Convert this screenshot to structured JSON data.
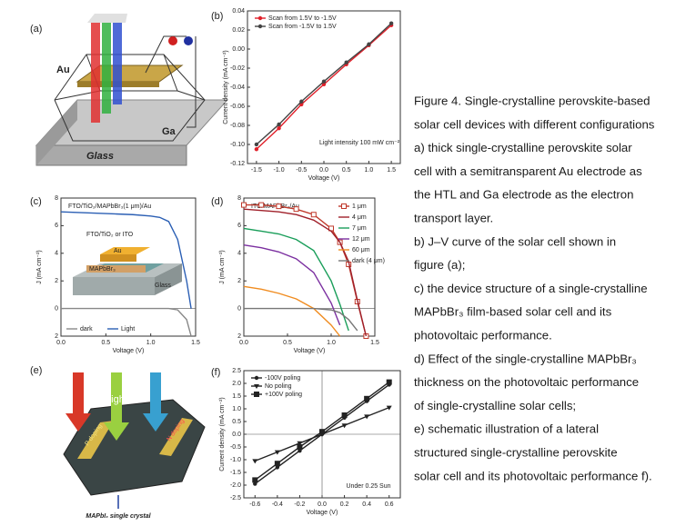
{
  "figure": {
    "panel_labels": [
      "(a)",
      "(b)",
      "(c)",
      "(d)",
      "(e)",
      "(f)"
    ],
    "panel_a": [
      "Au",
      "Ga",
      "Glass"
    ],
    "panel_e": [
      "Light",
      "P doping",
      "N doping",
      "MAPbI₃ single crystal"
    ],
    "caption": [
      "Figure 4. Single-crystalline perovskite-based",
      "solar cell devices with different configurations",
      "a)   thick single-crystalline perovskite solar",
      "cell with a semitransparent Au electrode as",
      "the HTL and Ga electrode as the electron",
      "transport layer.",
      "b) J–V curve of the solar cell shown in",
      "figure (a);",
      "c) the device structure of a  single-crystalline",
      "MAPbBr₃ film-based solar cell and its",
      "photovoltaic performance.",
      "d) Effect of the single-crystalline MAPbBr₃",
      "thickness on the photovoltaic performance",
      "of single-crystalline solar cells;",
      "e) schematic illustration of a lateral",
      "structured single-crystalline perovskite",
      "solar cell and its photovoltaic performance f)."
    ]
  },
  "chart_data": [
    {
      "type": "line",
      "x_label": "Voltage (V)",
      "y_label": "Current density (mA cm⁻²)",
      "annotations": [
        "Light intensity 100 mW cm⁻²"
      ],
      "x": [
        -1.5,
        -1.0,
        -0.5,
        0,
        0.5,
        1.0,
        1.5
      ],
      "series": [
        {
          "name": "Scan from 1.5V to -1.5V",
          "color": "#e0202a",
          "marker": "circle",
          "values": [
            -0.105,
            -0.083,
            -0.058,
            -0.037,
            -0.016,
            0.004,
            0.025
          ]
        },
        {
          "name": "Scan from -1.5V to 1.5V",
          "color": "#444444",
          "marker": "circle",
          "values": [
            -0.1,
            -0.079,
            -0.055,
            -0.034,
            -0.014,
            0.005,
            0.027
          ]
        }
      ],
      "xlim": [
        -1.7,
        1.7
      ],
      "ylim": [
        -0.12,
        0.04
      ],
      "xticks": [
        -1.5,
        {
          "value": -1,
          "label": "-1.0"
        },
        -0.5,
        {
          "value": 0,
          "label": "0.0"
        },
        0.5,
        {
          "value": 1,
          "label": "1.0"
        },
        1.5
      ],
      "yticks": [
        -0.12,
        {
          "value": -0.1,
          "label": "-0.10"
        },
        -0.08,
        -0.06,
        -0.04,
        -0.02,
        {
          "value": 0,
          "label": "0.00"
        },
        0.02,
        0.04
      ],
      "legend": "upper left",
      "zero_lines": false
    },
    {
      "type": "line",
      "title": "FTO/TiO₂/MAPbBr₃(1 μm)/Au",
      "x_label": "Voltage (V)",
      "y_label": "J (mA cm⁻²)",
      "inset": [
        "FTO/TiO₂ or ITO",
        "Au",
        "MAPbBr₃",
        "Glass"
      ],
      "x": [
        0,
        0.2,
        0.4,
        0.6,
        0.8,
        1.0,
        1.1,
        1.2,
        1.3,
        1.4,
        1.45
      ],
      "series": [
        {
          "name": "dark",
          "color": "#888888",
          "values": [
            0,
            0,
            0,
            0,
            0,
            0,
            0,
            0,
            -0.1,
            -0.8,
            -2
          ]
        },
        {
          "name": "Light",
          "color": "#2b5fb4",
          "values": [
            7,
            6.95,
            6.9,
            6.85,
            6.8,
            6.7,
            6.6,
            6.3,
            5.0,
            2.0,
            0
          ]
        }
      ],
      "xlim": [
        0,
        1.5
      ],
      "ylim": [
        -2,
        8
      ],
      "xticks": [
        {
          "value": 0,
          "label": "0.0"
        },
        0.5,
        {
          "value": 1,
          "label": "1.0"
        },
        1.5
      ],
      "yticks": [
        8,
        6,
        4,
        2,
        0,
        {
          "value": -2,
          "label": "2"
        }
      ],
      "legend": "lower left",
      "zero_lines": true
    },
    {
      "type": "line",
      "title": "ITO/MAPbBr₃/Au",
      "x_label": "Voltage (V)",
      "y_label": "J (mA cm⁻²)",
      "x": [
        0,
        0.2,
        0.4,
        0.6,
        0.8,
        1.0,
        1.1,
        1.2,
        1.3,
        1.4
      ],
      "series": [
        {
          "name": "1 μm",
          "color": "#c0392b",
          "marker": "square",
          "values": [
            7.5,
            7.5,
            7.4,
            7.2,
            6.8,
            5.8,
            4.8,
            3.2,
            0.5,
            -2
          ]
        },
        {
          "name": "4 μm",
          "color": "#a0202a",
          "values": [
            7.2,
            7.1,
            7.0,
            6.8,
            6.4,
            5.6,
            4.8,
            3.4,
            0.6,
            -2
          ]
        },
        {
          "name": "7 μm",
          "color": "#1a9e5a",
          "values": [
            5.8,
            5.6,
            5.4,
            5.0,
            4.2,
            2.0,
            0.3,
            -1.6,
            null,
            null
          ]
        },
        {
          "name": "12 μm",
          "color": "#7b2fa0",
          "values": [
            4.6,
            4.4,
            4.1,
            3.6,
            2.6,
            0.4,
            -1.2,
            null,
            null,
            null
          ]
        },
        {
          "name": "60 μm",
          "color": "#f08c20",
          "values": [
            1.6,
            1.4,
            1.1,
            0.7,
            0,
            -1.2,
            -2,
            null,
            null,
            null
          ]
        },
        {
          "name": "dark (4 μm)",
          "color": "#777777",
          "values": [
            0,
            0,
            0,
            0,
            0,
            -0.1,
            -0.3,
            -0.8,
            -1.6,
            null
          ]
        }
      ],
      "xlim": [
        0,
        1.5
      ],
      "ylim": [
        -2,
        8
      ],
      "xticks": [
        {
          "value": 0,
          "label": "0.0"
        },
        0.5,
        {
          "value": 1,
          "label": "1.0"
        },
        1.5
      ],
      "yticks": [
        8,
        6,
        4,
        2,
        0,
        {
          "value": -2,
          "label": "2"
        }
      ],
      "legend": "upper right",
      "zero_lines": true
    },
    {
      "type": "line",
      "x_label": "Voltage (V)",
      "y_label": "Current density (mA cm⁻²)",
      "annotations": [
        "Under 0.25 Sun"
      ],
      "x": [
        -0.6,
        -0.4,
        -0.2,
        0,
        0.2,
        0.4,
        0.6
      ],
      "series": [
        {
          "name": "-100V poling",
          "color": "#222222",
          "marker": "circle",
          "values": [
            -1.95,
            -1.3,
            -0.65,
            0,
            0.65,
            1.3,
            1.95
          ]
        },
        {
          "name": "No poling",
          "color": "#222222",
          "marker": "triangle",
          "values": [
            -1.05,
            -0.7,
            -0.35,
            0,
            0.35,
            0.7,
            1.05
          ]
        },
        {
          "name": "+100V poling",
          "color": "#222222",
          "marker": "square",
          "values": [
            -1.8,
            -1.15,
            -0.5,
            0.1,
            0.75,
            1.4,
            2.05
          ]
        }
      ],
      "xlim": [
        -0.7,
        0.7
      ],
      "ylim": [
        -2.5,
        2.5
      ],
      "xticks": [
        -0.6,
        -0.4,
        -0.2,
        {
          "value": 0,
          "label": "0.0"
        },
        0.2,
        0.4,
        0.6
      ],
      "yticks": [
        -2.5,
        {
          "value": -2,
          "label": "-2.0"
        },
        -1.5,
        {
          "value": -1,
          "label": "-1.0"
        },
        -0.5,
        {
          "value": 0,
          "label": "0.0"
        },
        0.5,
        {
          "value": 1,
          "label": "1.0"
        },
        1.5,
        {
          "value": 2,
          "label": "2.0"
        },
        2.5
      ],
      "legend": "upper left",
      "zero_lines": true
    }
  ]
}
